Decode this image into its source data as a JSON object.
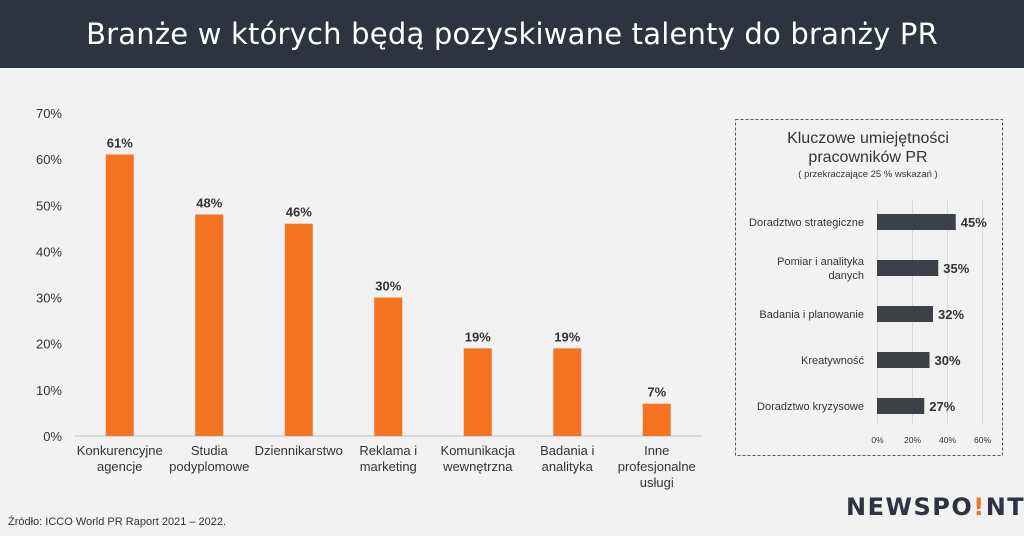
{
  "header": {
    "title": "Branże w których będą pozyskiwane talenty do branży PR"
  },
  "colors": {
    "main_bar": "#f47321",
    "inset_bar": "#3c4148",
    "header_bg": "#2d3340"
  },
  "chart_data": [
    {
      "type": "bar",
      "title": "",
      "categories": [
        [
          "Konkurencyjne",
          "agencje"
        ],
        [
          "Studia",
          "podyplomowe"
        ],
        [
          "Dziennikarstwo"
        ],
        [
          "Reklama i",
          "marketing"
        ],
        [
          "Komunikacja",
          "wewnętrzna"
        ],
        [
          "Badania i",
          "analityka"
        ],
        [
          "Inne",
          "profesjonalne",
          "usługi"
        ]
      ],
      "values": [
        61,
        48,
        46,
        30,
        19,
        19,
        7
      ],
      "value_labels": [
        "61%",
        "48%",
        "46%",
        "30%",
        "19%",
        "19%",
        "7%"
      ],
      "yticks": [
        "0%",
        "10%",
        "20%",
        "30%",
        "40%",
        "50%",
        "60%",
        "70%"
      ],
      "ylim": [
        0,
        70
      ],
      "grid": false
    },
    {
      "type": "bar",
      "orientation": "horizontal",
      "title": "Kluczowe umiejętności pracowników PR",
      "title_lines": [
        "Kluczowe umiejętności",
        "pracowników PR"
      ],
      "subtitle": "( przekraczające  25 % wskazań )",
      "categories": [
        [
          "Doradztwo strategiczne"
        ],
        [
          "Pomiar i analityka",
          "danych"
        ],
        [
          "Badania i planowanie"
        ],
        [
          "Kreatywność"
        ],
        [
          "Doradztwo kryzysowe"
        ]
      ],
      "values": [
        45,
        35,
        32,
        30,
        27
      ],
      "value_labels": [
        "45%",
        "35%",
        "32%",
        "30%",
        "27%"
      ],
      "xticks": [
        "0%",
        "20%",
        "40%",
        "60%"
      ],
      "xlim": [
        0,
        60
      ],
      "grid": true
    }
  ],
  "footer": {
    "source": "Źródło: ICCO World  PR Raport 2021 – 2022.",
    "logo_left": "NEWSPO",
    "logo_dot": "!",
    "logo_right": "NT"
  }
}
